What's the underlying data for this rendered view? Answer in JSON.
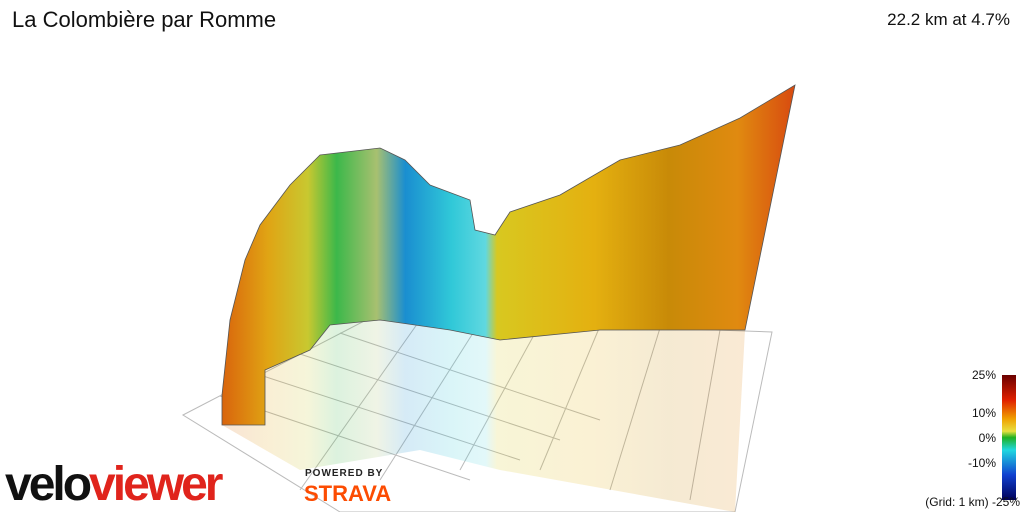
{
  "header": {
    "title": "La Colombière par Romme",
    "stats": "22.2 km at 4.7%"
  },
  "legend": {
    "labels": [
      "25%",
      "10%",
      "0%",
      "-10%",
      "-25%"
    ],
    "grid_note": "(Grid: 1 km)"
  },
  "branding": {
    "logo_velo": "velo",
    "logo_viewer": "viewer",
    "powered_by": "POWERED BY",
    "strava": "STRAVA"
  }
}
